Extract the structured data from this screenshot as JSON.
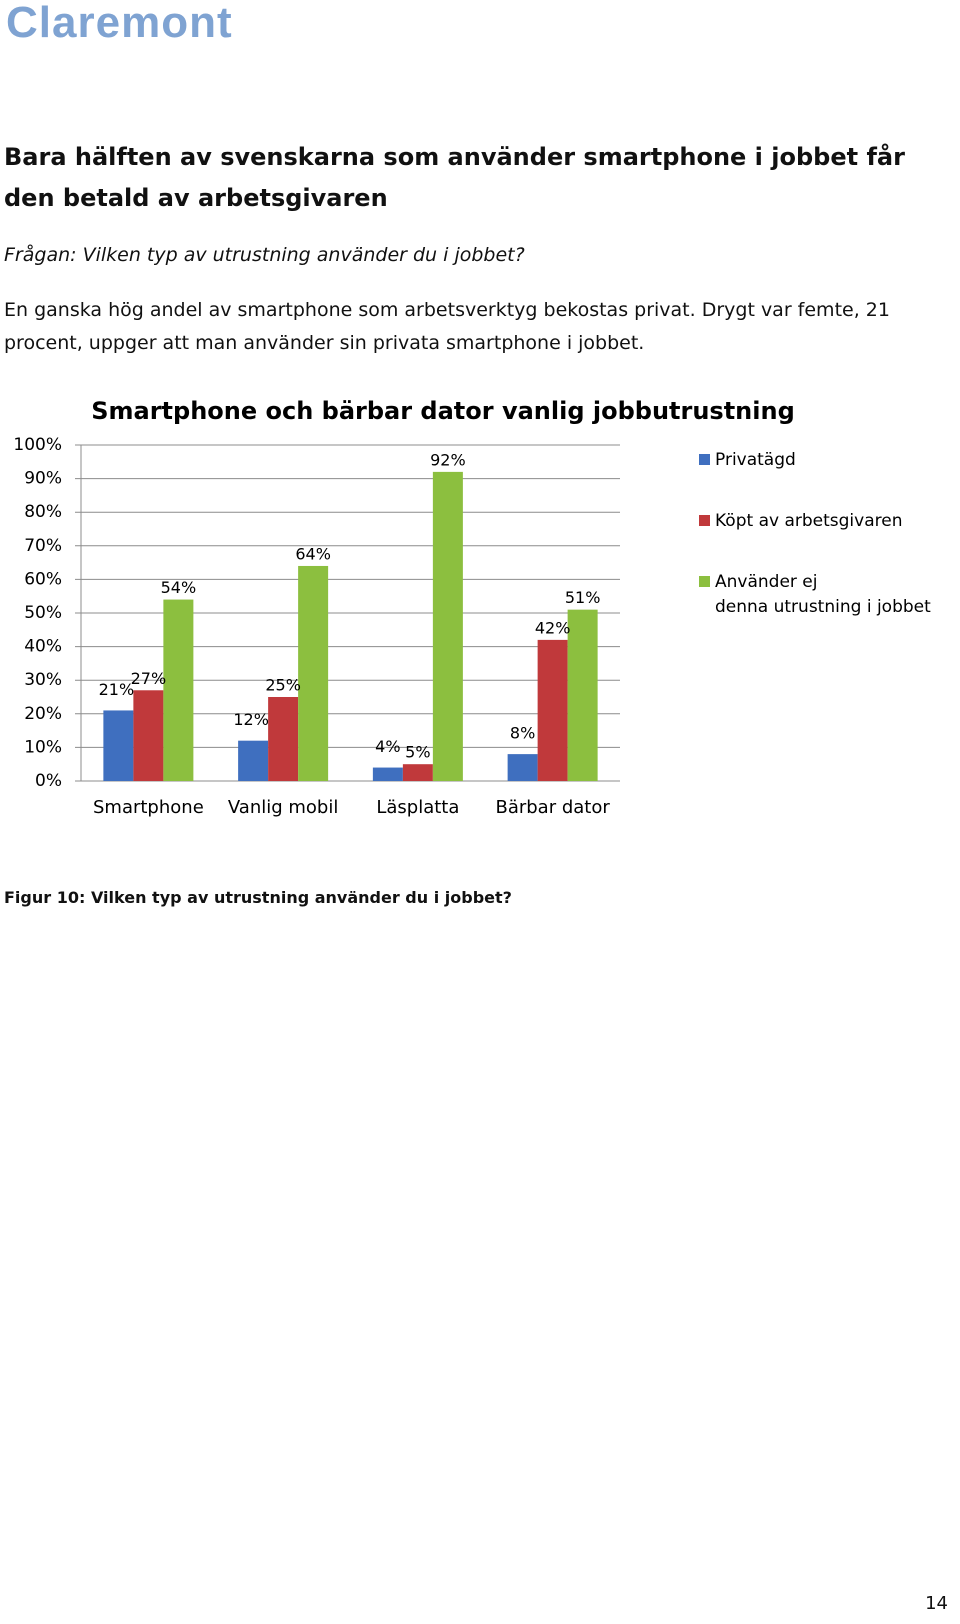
{
  "brand": {
    "logo_text": "Claremont",
    "color": "#7fa3d2"
  },
  "document": {
    "heading": "Bara hälften av svenskarna som använder smartphone i jobbet får den betald av arbetsgivaren",
    "question": "Frågan: Vilken typ av utrustning använder du i jobbet?",
    "paragraph": "En ganska hög andel av smartphone som arbetsverktyg bekostas privat. Drygt var femte, 21 procent, uppger att man använder sin privata smartphone i jobbet.",
    "figure_caption": "Figur 10: Vilken typ av utrustning använder du i jobbet?",
    "page_number": "14"
  },
  "chart_data": {
    "type": "bar",
    "title": "Smartphone och bärbar dator vanlig jobbutrustning",
    "categories": [
      "Smartphone",
      "Vanlig mobil",
      "Läsplatta",
      "Bärbar dator"
    ],
    "series": [
      {
        "name": "Privatägd",
        "values": [
          21,
          12,
          4,
          8
        ],
        "labels": [
          "21%",
          "12%",
          "4%",
          "8%"
        ],
        "color": "#3f6fbf"
      },
      {
        "name": "Köpt av arbetsgivaren",
        "values": [
          27,
          25,
          5,
          42
        ],
        "labels": [
          "27%",
          "25%",
          "5%",
          "42%"
        ],
        "color": "#c0393b"
      },
      {
        "name": "Använder ej denna utrustning i jobbet",
        "values": [
          54,
          64,
          92,
          51
        ],
        "labels": [
          "54%",
          "64%",
          "92%",
          "51%"
        ],
        "color": "#8cbf3f"
      }
    ],
    "yticks": [
      "0%",
      "10%",
      "20%",
      "30%",
      "40%",
      "50%",
      "60%",
      "70%",
      "80%",
      "90%",
      "100%"
    ],
    "ylim": [
      0,
      100
    ],
    "grid": true,
    "legend": "right"
  }
}
